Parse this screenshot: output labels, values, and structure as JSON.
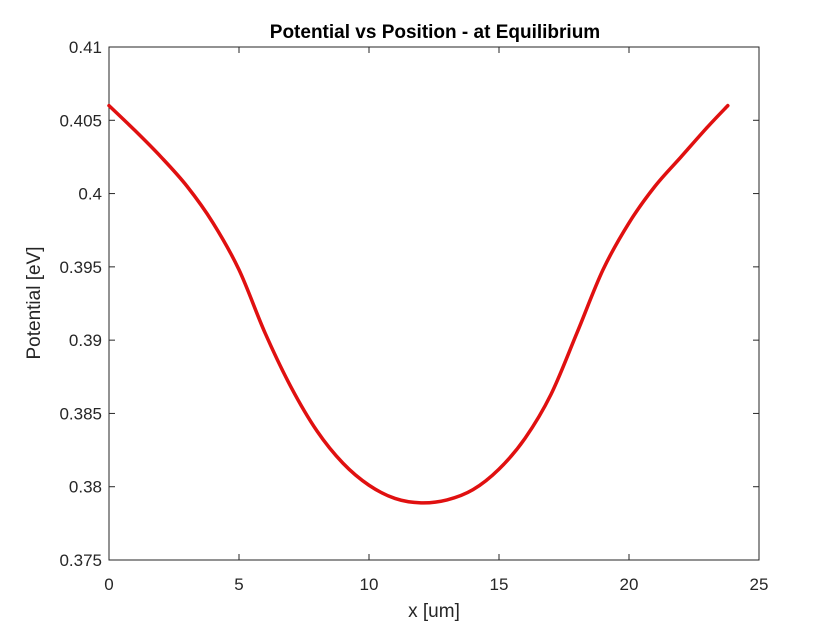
{
  "chart_data": {
    "type": "line",
    "title": "Potential vs Position - at Equilibrium",
    "xlabel": "x [um]",
    "ylabel": "Potential [eV]",
    "xlim": [
      0,
      25
    ],
    "ylim": [
      0.375,
      0.41
    ],
    "x_ticks": [
      0,
      5,
      10,
      15,
      20,
      25
    ],
    "x_tick_labels": [
      "0",
      "5",
      "10",
      "15",
      "20",
      "25"
    ],
    "y_ticks": [
      0.375,
      0.38,
      0.385,
      0.39,
      0.395,
      0.4,
      0.405,
      0.41
    ],
    "y_tick_labels": [
      "0.375",
      "0.38",
      "0.385",
      "0.39",
      "0.395",
      "0.4",
      "0.405",
      "0.41"
    ],
    "grid": false,
    "series": [
      {
        "color": "#e01010",
        "x": [
          0,
          1,
          2,
          3,
          4,
          5,
          6,
          7,
          8,
          9,
          10,
          11,
          12,
          13,
          14,
          15,
          16,
          17,
          18,
          19,
          20,
          21,
          22,
          23,
          23.8
        ],
        "y": [
          0.406,
          0.4043,
          0.4025,
          0.4005,
          0.398,
          0.3948,
          0.3905,
          0.3868,
          0.3838,
          0.3816,
          0.3801,
          0.3792,
          0.3789,
          0.3791,
          0.3798,
          0.3812,
          0.3833,
          0.3863,
          0.3905,
          0.3948,
          0.398,
          0.4005,
          0.4025,
          0.4045,
          0.406
        ]
      }
    ]
  }
}
